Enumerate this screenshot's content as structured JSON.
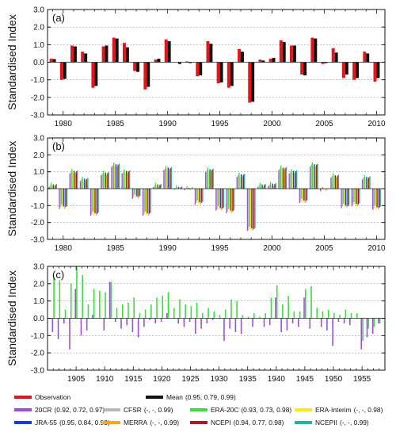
{
  "chart_data": [
    {
      "type": "bar",
      "panel_label": "(a)",
      "ylabel": "Standardised Index",
      "ylim": [
        -3.0,
        3.0
      ],
      "yticks": [
        "-3.0",
        "-2.0",
        "-1.0",
        "0.0",
        "1.0",
        "2.0",
        "3.0"
      ],
      "xlim": [
        1978.5,
        2010.8
      ],
      "xticks": [
        1980,
        1985,
        1990,
        1995,
        2000,
        2005,
        2010
      ],
      "grid": "dashed horizontal",
      "x": [
        1979,
        1980,
        1981,
        1982,
        1983,
        1984,
        1985,
        1986,
        1987,
        1988,
        1989,
        1990,
        1991,
        1992,
        1993,
        1994,
        1995,
        1996,
        1997,
        1998,
        1999,
        2000,
        2001,
        2002,
        2003,
        2004,
        2005,
        2006,
        2007,
        2008,
        2009,
        2010
      ],
      "series": [
        {
          "name": "Observation",
          "color": "#e8141a",
          "values": [
            0.2,
            -1.0,
            0.95,
            0.6,
            -1.45,
            0.9,
            1.4,
            1.1,
            -0.5,
            -1.55,
            0.15,
            1.3,
            0.0,
            0.05,
            -0.8,
            1.2,
            -1.2,
            -1.45,
            0.75,
            -2.3,
            0.15,
            0.2,
            1.25,
            0.95,
            -0.7,
            1.4,
            -0.1,
            0.8,
            -0.9,
            -1.0,
            0.6,
            -1.1
          ]
        },
        {
          "name": "Mean",
          "color": "#111111",
          "values": [
            0.18,
            -0.95,
            0.9,
            0.5,
            -1.35,
            0.95,
            1.35,
            0.85,
            -0.55,
            -1.4,
            0.2,
            1.2,
            -0.1,
            -0.05,
            -0.75,
            1.05,
            -1.15,
            -1.35,
            0.6,
            -2.25,
            0.1,
            0.25,
            1.15,
            0.95,
            -0.75,
            1.35,
            -0.05,
            0.55,
            -0.7,
            -0.9,
            0.5,
            -0.9
          ]
        }
      ]
    },
    {
      "type": "bar",
      "panel_label": "(b)",
      "ylabel": "Standardised Index",
      "ylim": [
        -3.0,
        3.0
      ],
      "yticks": [
        "-3.0",
        "-2.0",
        "-1.0",
        "0.0",
        "1.0",
        "2.0",
        "3.0"
      ],
      "xlim": [
        1978.5,
        2010.8
      ],
      "xticks": [
        1980,
        1985,
        1990,
        1995,
        2000,
        2005,
        2010
      ],
      "grid": "dashed horizontal",
      "x": [
        1979,
        1980,
        1981,
        1982,
        1983,
        1984,
        1985,
        1986,
        1987,
        1988,
        1989,
        1990,
        1991,
        1992,
        1993,
        1994,
        1995,
        1996,
        1997,
        1998,
        1999,
        2000,
        2001,
        2002,
        2003,
        2004,
        2005,
        2006,
        2007,
        2008,
        2009,
        2010
      ],
      "base_values": [
        0.2,
        -1.1,
        1.0,
        0.55,
        -1.5,
        0.9,
        1.4,
        1.0,
        -0.5,
        -1.5,
        0.2,
        1.2,
        0.05,
        0.0,
        -0.85,
        1.1,
        -1.2,
        -1.35,
        0.8,
        -2.4,
        0.2,
        0.25,
        1.2,
        1.0,
        -0.75,
        1.4,
        -0.05,
        0.75,
        -1.05,
        -0.95,
        0.65,
        -1.15
      ],
      "series": [
        {
          "name": "20CR",
          "color": "#9b4fd6",
          "offset": -0.1
        },
        {
          "name": "CFSR",
          "color": "#b8b8b8",
          "offset": 0.0
        },
        {
          "name": "ERA-20C",
          "color": "#3ddc3d",
          "offset": 0.15
        },
        {
          "name": "ERA-Interim",
          "color": "#ffe81a",
          "offset": -0.05
        },
        {
          "name": "JRA-55",
          "color": "#1f3bd1",
          "offset": 0.05
        },
        {
          "name": "MERRA",
          "color": "#f5a623",
          "offset": -0.08
        },
        {
          "name": "NCEPI",
          "color": "#a0202a",
          "offset": 0.02
        },
        {
          "name": "NCEPII",
          "color": "#28b0a0",
          "offset": 0.08
        }
      ]
    },
    {
      "type": "bar",
      "panel_label": "(c)",
      "ylabel": "Standardised Index",
      "ylim": [
        -3.0,
        3.0
      ],
      "yticks": [
        "-3.0",
        "-2.0",
        "-1.0",
        "0.0",
        "1.0",
        "2.0",
        "3.0"
      ],
      "xlim": [
        1900,
        1959
      ],
      "xticks": [
        1905,
        1910,
        1915,
        1920,
        1925,
        1930,
        1935,
        1940,
        1945,
        1950,
        1955
      ],
      "grid": "dashed horizontal",
      "x": [
        1901,
        1902,
        1903,
        1904,
        1905,
        1906,
        1907,
        1908,
        1909,
        1910,
        1911,
        1912,
        1913,
        1914,
        1915,
        1916,
        1917,
        1918,
        1919,
        1920,
        1921,
        1922,
        1923,
        1924,
        1925,
        1926,
        1927,
        1928,
        1929,
        1930,
        1931,
        1932,
        1933,
        1934,
        1935,
        1936,
        1937,
        1938,
        1939,
        1940,
        1941,
        1942,
        1943,
        1944,
        1945,
        1946,
        1947,
        1948,
        1949,
        1950,
        1951,
        1952,
        1953,
        1954,
        1955,
        1956,
        1957,
        1958
      ],
      "series": [
        {
          "name": "ERA-20C",
          "color": "#3ddc3d",
          "values": [
            2.4,
            2.2,
            0.5,
            2.0,
            3.0,
            2.5,
            0.8,
            1.7,
            1.6,
            1.5,
            2.1,
            0.6,
            0.8,
            0.9,
            1.2,
            0.3,
            0.5,
            0.8,
            1.2,
            1.3,
            1.5,
            0.6,
            1.1,
            0.8,
            0.7,
            0.9,
            0.3,
            0.6,
            0.4,
            0.2,
            0.5,
            1.1,
            1.0,
            0.2,
            0.1,
            0.3,
            0.1,
            0.3,
            1.2,
            1.9,
            0.8,
            1.3,
            0.4,
            0.4,
            1.7,
            1.85,
            0.6,
            0.4,
            0.5,
            0.3,
            0.2,
            0.5,
            0.3,
            0.3,
            -1.3,
            -0.6,
            -0.5,
            -0.3
          ]
        },
        {
          "name": "20CR",
          "color": "#9b4fd6",
          "values": [
            -0.8,
            -1.2,
            -0.3,
            -1.8,
            1.7,
            -1.0,
            -0.7,
            0.2,
            0.0,
            -0.7,
            2.1,
            -0.2,
            -0.6,
            -0.4,
            -0.8,
            -1.1,
            -0.5,
            -0.1,
            -0.3,
            -0.2,
            0.3,
            0.0,
            -0.3,
            -0.5,
            -0.2,
            -0.9,
            -0.6,
            -0.3,
            -0.1,
            0.0,
            -1.3,
            -0.6,
            -0.8,
            -0.9,
            0.0,
            -0.5,
            0.0,
            -0.5,
            -0.4,
            1.2,
            -0.8,
            -0.7,
            -0.3,
            -0.5,
            1.2,
            -0.6,
            0.0,
            -0.5,
            -0.7,
            -1.6,
            -0.2,
            -0.3,
            -0.4,
            0.0,
            -1.8,
            -1.1,
            -0.9,
            -0.3
          ]
        }
      ]
    }
  ],
  "legend": [
    {
      "name": "Observation",
      "stats": "",
      "color": "#e8141a"
    },
    {
      "name": "Mean",
      "stats": "(0.95, 0.79, 0.99)",
      "color": "#111111"
    },
    {
      "name": "20CR",
      "stats": "(0.92, 0.72, 0.97)",
      "color": "#9b4fd6"
    },
    {
      "name": "CFSR",
      "stats": "(-, -, 0.99)",
      "color": "#b8b8b8"
    },
    {
      "name": "ERA-20C",
      "stats": "(0.93, 0.73, 0.98)",
      "color": "#3ddc3d"
    },
    {
      "name": "ERA-Interim",
      "stats": "(-, -, 0.98)",
      "color": "#ffe81a"
    },
    {
      "name": "JRA-55",
      "stats": "(0.95, 0.84, 0.99)",
      "color": "#1f3bd1"
    },
    {
      "name": "MERRA",
      "stats": "(-, -, 0.99)",
      "color": "#f5a623"
    },
    {
      "name": "NCEPI",
      "stats": "(0.94, 0.77, 0.98)",
      "color": "#a0202a"
    },
    {
      "name": "NCEPII",
      "stats": "(-, -, 0.99)",
      "color": "#28b0a0"
    }
  ]
}
